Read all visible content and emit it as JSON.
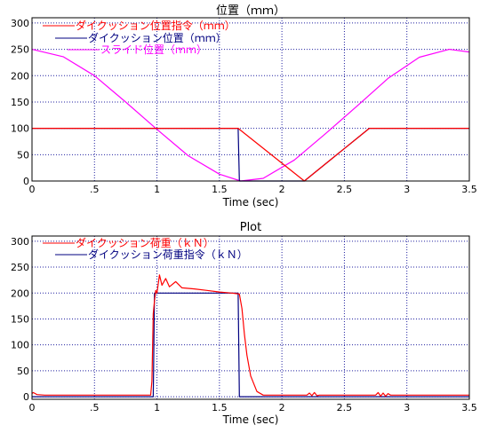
{
  "chart_data": [
    {
      "type": "line",
      "title": "位置（ｍｍ）",
      "xlabel": "Time (sec)",
      "ylabel": "",
      "xlim": [
        0,
        3.5
      ],
      "ylim": [
        0,
        310
      ],
      "xticks": [
        0,
        0.5,
        1,
        1.5,
        2,
        2.5,
        3,
        3.5
      ],
      "xtick_labels": [
        "0",
        ".5",
        "1",
        "1.5",
        "2",
        "2.5",
        "3",
        "3.5"
      ],
      "yticks": [
        0,
        50,
        100,
        150,
        200,
        250,
        300
      ],
      "ytick_labels": [
        "0",
        "50",
        "100",
        "150",
        "200",
        "250",
        "300"
      ],
      "grid": true,
      "legend_position": "top-left",
      "series": [
        {
          "name": "ダイクッション位置指令（ｍｍ）",
          "color": "#ff0000",
          "x": [
            0,
            1.65,
            2.18,
            2.7,
            3.5
          ],
          "y": [
            100,
            100,
            0,
            100,
            100
          ]
        },
        {
          "name": "ダイクッション位置（ｍｍ）",
          "color": "#000080",
          "x": [
            0,
            1.65,
            1.66,
            2.18,
            2.7,
            3.5
          ],
          "y": [
            100,
            100,
            0,
            0,
            100,
            100
          ]
        },
        {
          "name": "スライド位置（ｍｍ）",
          "color": "#ff00ff",
          "x": [
            0,
            0.25,
            0.5,
            0.75,
            1.0,
            1.25,
            1.5,
            1.67,
            1.85,
            2.1,
            2.35,
            2.6,
            2.85,
            3.1,
            3.34,
            3.5
          ],
          "y": [
            250,
            236,
            200,
            150,
            98,
            48,
            13,
            0,
            5,
            40,
            90,
            142,
            195,
            235,
            250,
            245
          ]
        }
      ]
    },
    {
      "type": "line",
      "title": "Plot",
      "xlabel": "Time (sec)",
      "ylabel": "",
      "xlim": [
        0,
        3.5
      ],
      "ylim": [
        -5,
        310
      ],
      "xticks": [
        0,
        0.5,
        1,
        1.5,
        2,
        2.5,
        3,
        3.5
      ],
      "xtick_labels": [
        "0",
        ".5",
        "1",
        "1.5",
        "2",
        "2.5",
        "3",
        "3.5"
      ],
      "yticks": [
        0,
        50,
        100,
        150,
        200,
        250,
        300
      ],
      "ytick_labels": [
        "0",
        "50",
        "100",
        "150",
        "200",
        "250",
        "300"
      ],
      "grid": true,
      "legend_position": "top-left",
      "series": [
        {
          "name": "ダイクッション荷重（ｋＮ）",
          "color": "#ff0000",
          "x": [
            0,
            0.01,
            0.04,
            0.1,
            0.95,
            0.96,
            0.97,
            0.98,
            0.99,
            1.0,
            1.02,
            1.04,
            1.07,
            1.1,
            1.15,
            1.2,
            1.3,
            1.4,
            1.5,
            1.6,
            1.66,
            1.68,
            1.7,
            1.72,
            1.75,
            1.8,
            1.85,
            2.0,
            2.2,
            2.22,
            2.24,
            2.26,
            2.28,
            2.3,
            2.5,
            2.75,
            2.77,
            2.79,
            2.81,
            2.83,
            2.85,
            2.87,
            3.0,
            3.5
          ],
          "y": [
            6,
            8,
            4,
            3,
            3,
            30,
            160,
            185,
            205,
            200,
            235,
            215,
            228,
            212,
            222,
            210,
            208,
            205,
            202,
            200,
            198,
            170,
            120,
            80,
            40,
            10,
            3,
            3,
            3,
            7,
            2,
            8,
            2,
            3,
            3,
            3,
            8,
            1,
            7,
            1,
            6,
            3,
            3,
            3
          ]
        },
        {
          "name": "ダイクッション荷重指令（ｋＮ）",
          "color": "#000080",
          "x": [
            0,
            0.97,
            0.98,
            1.65,
            1.66,
            3.5
          ],
          "y": [
            0,
            0,
            200,
            200,
            0,
            0
          ]
        }
      ]
    }
  ]
}
